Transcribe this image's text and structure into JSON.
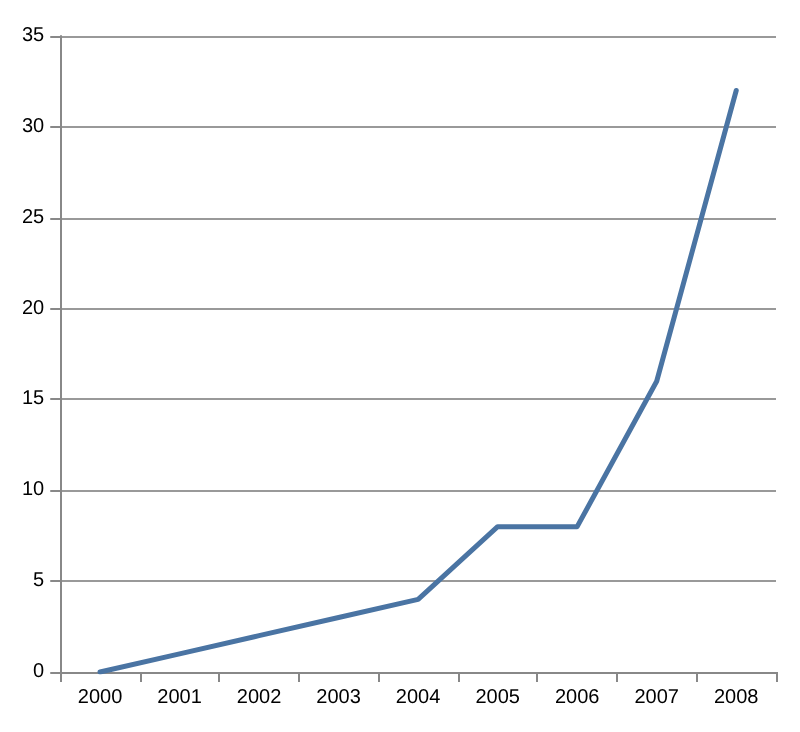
{
  "chart_data": {
    "type": "line",
    "categories": [
      "2000",
      "2001",
      "2002",
      "2003",
      "2004",
      "2005",
      "2006",
      "2007",
      "2008"
    ],
    "series": [
      {
        "color": "#4a74a3",
        "values": [
          0,
          1,
          2,
          3,
          4,
          8,
          8,
          16,
          32
        ]
      }
    ],
    "ylim": [
      0,
      35
    ],
    "yticks": [
      0,
      5,
      10,
      15,
      20,
      25,
      30,
      35
    ],
    "grid": "y",
    "marker": "none",
    "line_style": "solid"
  }
}
